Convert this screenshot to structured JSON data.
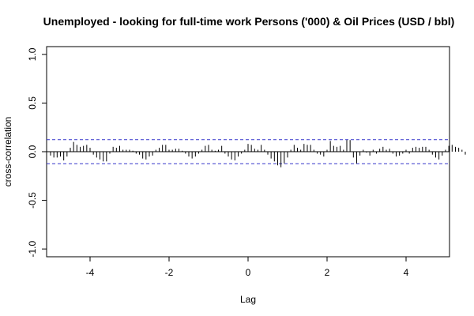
{
  "chart_data": {
    "type": "bar",
    "title": "Unemployed - looking for full-time work Persons ('000) & Oil Prices (USD / bbl)",
    "xlabel": "Lag",
    "ylabel": "cross-correlation",
    "xlim": [
      -5.1,
      5.1
    ],
    "ylim": [
      -1.08,
      1.08
    ],
    "x_ticks": [
      -4,
      -2,
      0,
      2,
      4
    ],
    "x_tick_labels": [
      "-4",
      "-2",
      "0",
      "2",
      "4"
    ],
    "y_ticks": [
      -1.0,
      -0.5,
      0.0,
      0.5,
      1.0
    ],
    "y_tick_labels": [
      "-1.0",
      "-0.5",
      "0.0",
      "0.5",
      "1.0"
    ],
    "confidence_band": 0.124,
    "grid": false,
    "colors": {
      "bars": "#000000",
      "band": "#3333cc",
      "zero_line": "#000000"
    },
    "lag_step": 0.08333,
    "lag_start": -5.0,
    "values": [
      -0.04,
      -0.06,
      -0.06,
      -0.05,
      -0.09,
      -0.05,
      0.04,
      0.1,
      0.07,
      0.05,
      0.06,
      0.07,
      0.04,
      -0.03,
      -0.06,
      -0.08,
      -0.1,
      -0.1,
      -0.02,
      0.05,
      0.04,
      0.06,
      0.02,
      0.02,
      0.02,
      0.01,
      -0.02,
      -0.03,
      -0.07,
      -0.08,
      -0.05,
      -0.04,
      0.02,
      0.04,
      0.07,
      0.07,
      0.02,
      0.02,
      0.03,
      0.03,
      0.01,
      -0.02,
      -0.05,
      -0.07,
      -0.05,
      -0.02,
      0.02,
      0.06,
      0.07,
      0.02,
      0.01,
      0.02,
      0.06,
      -0.02,
      -0.05,
      -0.08,
      -0.09,
      -0.05,
      -0.02,
      0.02,
      0.08,
      0.07,
      0.03,
      0.02,
      0.07,
      0.02,
      -0.03,
      -0.07,
      -0.1,
      -0.14,
      -0.16,
      -0.12,
      -0.06,
      0.02,
      0.07,
      0.04,
      0.02,
      0.08,
      0.07,
      0.07,
      0.02,
      -0.02,
      -0.03,
      -0.05,
      0.02,
      0.11,
      0.06,
      0.05,
      0.06,
      0.02,
      0.12,
      0.12,
      -0.06,
      -0.12,
      -0.04,
      0.02,
      -0.01,
      -0.04,
      0.02,
      -0.02,
      0.03,
      0.05,
      0.02,
      0.03,
      -0.02,
      -0.05,
      -0.04,
      -0.02,
      0.02,
      -0.02,
      0.04,
      0.05,
      0.04,
      0.05,
      0.05,
      0.02,
      -0.03,
      -0.06,
      -0.08,
      -0.04,
      0.02,
      0.06,
      0.07,
      0.05,
      0.04,
      0.02,
      -0.03
    ]
  }
}
